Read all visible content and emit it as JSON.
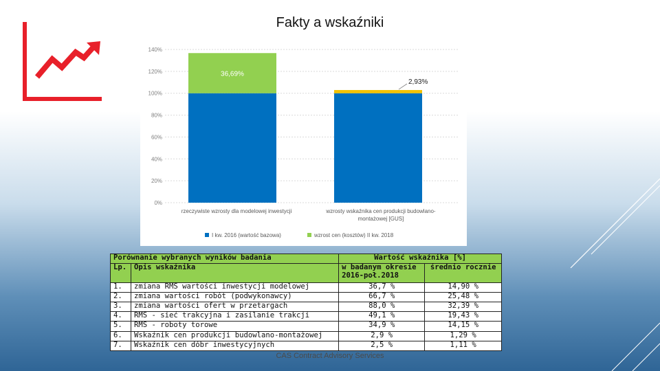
{
  "slide": {
    "title": "Fakty a wskaźniki",
    "footer": "CAS Contract Advisory Services",
    "colors": {
      "accent_red": "#e8202a",
      "bar_blue": "#0070c0",
      "bar_green": "#92d050",
      "bar_yellow": "#f2c200"
    }
  },
  "chart_data": {
    "type": "bar",
    "stacked": true,
    "categories": [
      "rzeczywiste wzrosty dla modelowej inwestycji",
      "wzrosty wskaźnika cen produkcji budowlano-montażowej [GUS]"
    ],
    "series": [
      {
        "name": "I kw. 2016 (wartość bazowa)",
        "values": [
          100,
          100
        ],
        "color": "#0070c0"
      },
      {
        "name": "wzrost cen (kosztów) II kw. 2018",
        "values": [
          36.69,
          2.93
        ],
        "colors": [
          "#92d050",
          "#f2c200"
        ]
      }
    ],
    "data_labels": [
      "36,69%",
      "2,93%"
    ],
    "y_ticks": [
      "0%",
      "20%",
      "40%",
      "60%",
      "80%",
      "100%",
      "120%",
      "140%"
    ],
    "ylim": [
      0,
      140
    ],
    "grid": true,
    "legend": "bottom"
  },
  "table": {
    "header": {
      "title": "Porównanie wybranych wyników badania",
      "lp": "Lp.",
      "opis": "Opis wskaźnika",
      "wartosc": "Wartość wskaźnika [%]",
      "okres": "w badanym okresie",
      "okres_sub": "2016-poł.2018",
      "srednio": "średnio rocznie"
    },
    "rows": [
      {
        "lp": "1.",
        "opis": "zmiana RMS wartości inwestycji modelowej",
        "okres": "36,7 %",
        "srednio": "14,90 %"
      },
      {
        "lp": "2.",
        "opis": "zmiana wartości robót (podwykonawcy)",
        "okres": "66,7 %",
        "srednio": "25,48 %"
      },
      {
        "lp": "3.",
        "opis": "zmiana wartości ofert w przetargach",
        "okres": "88,0 %",
        "srednio": "32,39 %"
      },
      {
        "lp": "4.",
        "opis": "RMS - sieć trakcyjna i zasilanie trakcji",
        "okres": "49,1 %",
        "srednio": "19,43 %"
      },
      {
        "lp": "5.",
        "opis": "RMS - roboty torowe",
        "okres": "34,9 %",
        "srednio": "14,15 %"
      },
      {
        "lp": "6.",
        "opis": "Wskaźnik cen produkcji budowlano-montażowej",
        "okres": "2,9 %",
        "srednio": "1,29 %"
      },
      {
        "lp": "7.",
        "opis": "Wskaźnik cen dóbr inwestycyjnych",
        "okres": "2,5 %",
        "srednio": "1,11 %"
      }
    ]
  }
}
